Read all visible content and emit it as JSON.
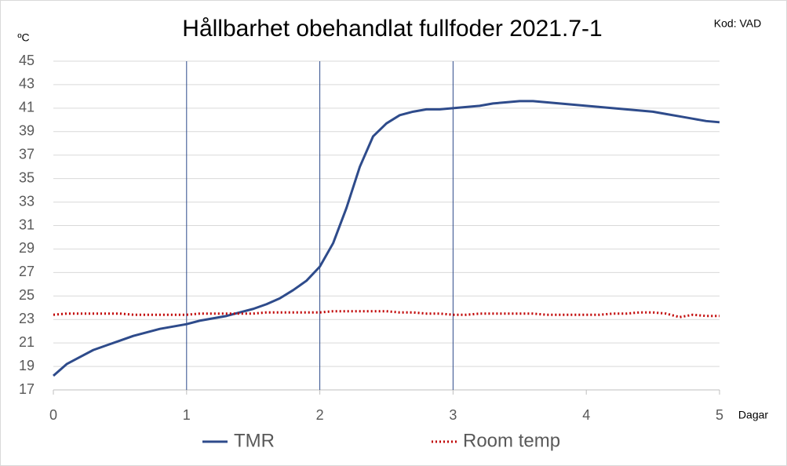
{
  "chart_data": {
    "type": "line",
    "title": "Hållbarhet obehandlat fullfoder 2021.7-1",
    "code_label": "Kod: VAD",
    "y_label": "ºC",
    "x_label": "Dagar",
    "x": [
      0,
      0.1,
      0.2,
      0.3,
      0.4,
      0.5,
      0.6,
      0.7,
      0.8,
      0.9,
      1,
      1.1,
      1.2,
      1.3,
      1.4,
      1.5,
      1.6,
      1.7,
      1.8,
      1.9,
      2,
      2.1,
      2.2,
      2.3,
      2.4,
      2.5,
      2.6,
      2.7,
      2.8,
      2.9,
      3,
      3.1,
      3.2,
      3.3,
      3.4,
      3.5,
      3.6,
      3.7,
      3.8,
      3.9,
      4,
      4.1,
      4.2,
      4.3,
      4.4,
      4.5,
      4.6,
      4.7,
      4.8,
      4.9,
      5
    ],
    "series": [
      {
        "name": "TMR",
        "color": "#2e4b8b",
        "dash": "solid",
        "values": [
          18.2,
          19.2,
          19.8,
          20.4,
          20.8,
          21.2,
          21.6,
          21.9,
          22.2,
          22.4,
          22.6,
          22.9,
          23.1,
          23.3,
          23.6,
          23.9,
          24.3,
          24.8,
          25.5,
          26.3,
          27.5,
          29.5,
          32.5,
          36.0,
          38.6,
          39.7,
          40.4,
          40.7,
          40.9,
          40.9,
          41.0,
          41.1,
          41.2,
          41.4,
          41.5,
          41.6,
          41.6,
          41.5,
          41.4,
          41.3,
          41.2,
          41.1,
          41.0,
          40.9,
          40.8,
          40.7,
          40.5,
          40.3,
          40.1,
          39.9,
          39.8
        ]
      },
      {
        "name": "Room temp",
        "color": "#c00000",
        "dash": "dotted",
        "values": [
          23.4,
          23.5,
          23.5,
          23.5,
          23.5,
          23.5,
          23.4,
          23.4,
          23.4,
          23.4,
          23.4,
          23.5,
          23.5,
          23.5,
          23.5,
          23.5,
          23.6,
          23.6,
          23.6,
          23.6,
          23.6,
          23.7,
          23.7,
          23.7,
          23.7,
          23.7,
          23.6,
          23.6,
          23.5,
          23.5,
          23.4,
          23.4,
          23.5,
          23.5,
          23.5,
          23.5,
          23.5,
          23.4,
          23.4,
          23.4,
          23.4,
          23.4,
          23.5,
          23.5,
          23.6,
          23.6,
          23.5,
          23.2,
          23.4,
          23.3,
          23.3
        ]
      }
    ],
    "xlim": [
      0,
      5
    ],
    "xticks": [
      0,
      1,
      2,
      3,
      4,
      5
    ],
    "ylim": [
      17,
      45
    ],
    "yticks": [
      17,
      19,
      21,
      23,
      25,
      27,
      29,
      31,
      33,
      35,
      37,
      39,
      41,
      43,
      45
    ],
    "grid": true,
    "reference_lines_x": [
      1,
      2,
      3
    ],
    "reference_line_color": "#2e4b8b",
    "legend": "bottom"
  }
}
